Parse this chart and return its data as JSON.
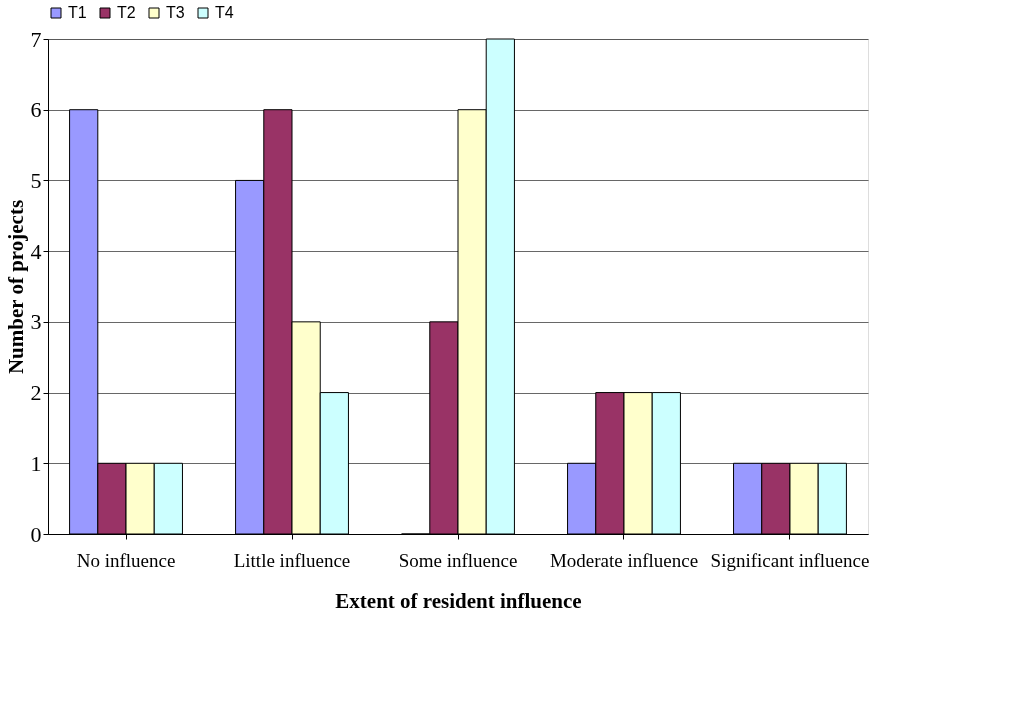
{
  "chart_data": {
    "type": "bar",
    "xlabel": "Extent of resident influence",
    "ylabel": "Number of projects",
    "categories": [
      "No influence",
      "Little influence",
      "Some influence",
      "Moderate influence",
      "Significant influence"
    ],
    "series": [
      {
        "name": "T1",
        "color": "#9999ff",
        "values": [
          6,
          5,
          0,
          1,
          1
        ]
      },
      {
        "name": "T2",
        "color": "#993366",
        "values": [
          1,
          6,
          3,
          2,
          1
        ]
      },
      {
        "name": "T3",
        "color": "#ffffcc",
        "values": [
          1,
          3,
          6,
          2,
          1
        ]
      },
      {
        "name": "T4",
        "color": "#ccffff",
        "values": [
          1,
          2,
          7,
          2,
          1
        ]
      }
    ],
    "ylim": [
      0,
      7
    ],
    "yticks": [
      0,
      1,
      2,
      3,
      4,
      5,
      6,
      7
    ],
    "grid": "y",
    "legend": "top"
  }
}
